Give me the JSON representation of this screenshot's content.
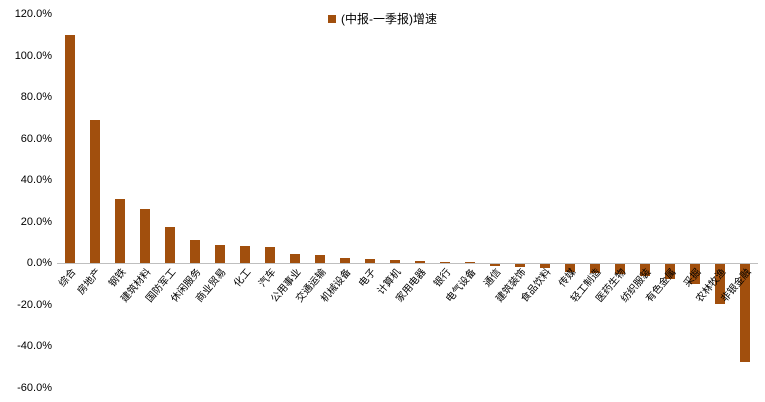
{
  "colors": {
    "bar": "#A14F0D",
    "axis_text": "#000000",
    "zero_line": "#BFBFBF",
    "background": "#FFFFFF"
  },
  "chart_data": {
    "type": "bar",
    "title": "",
    "xlabel": "",
    "ylabel": "",
    "legend": [
      "(中报-一季报)增速"
    ],
    "legend_position": "top-center",
    "grid": false,
    "ylim": [
      -60,
      120
    ],
    "ytick_step": 20,
    "ytick_format": "percent_1dp",
    "categories": [
      "综合",
      "房地产",
      "钢铁",
      "建筑材料",
      "国防军工",
      "休闲服务",
      "商业贸易",
      "化工",
      "汽车",
      "公用事业",
      "交通运输",
      "机械设备",
      "电子",
      "计算机",
      "家用电器",
      "银行",
      "电气设备",
      "通信",
      "建筑装饰",
      "食品饮料",
      "传媒",
      "轻工制造",
      "医药生物",
      "纺织服装",
      "有色金属",
      "采掘",
      "农林牧渔",
      "非银金融"
    ],
    "values": [
      110,
      69,
      31,
      26,
      17.5,
      11,
      9,
      8.5,
      8,
      4.5,
      4,
      2.5,
      2,
      1.5,
      1,
      0.8,
      0.5,
      -1,
      -1.5,
      -2,
      -3.5,
      -4,
      -4.5,
      -5.5,
      -7,
      -9.5,
      -19,
      -47
    ]
  }
}
